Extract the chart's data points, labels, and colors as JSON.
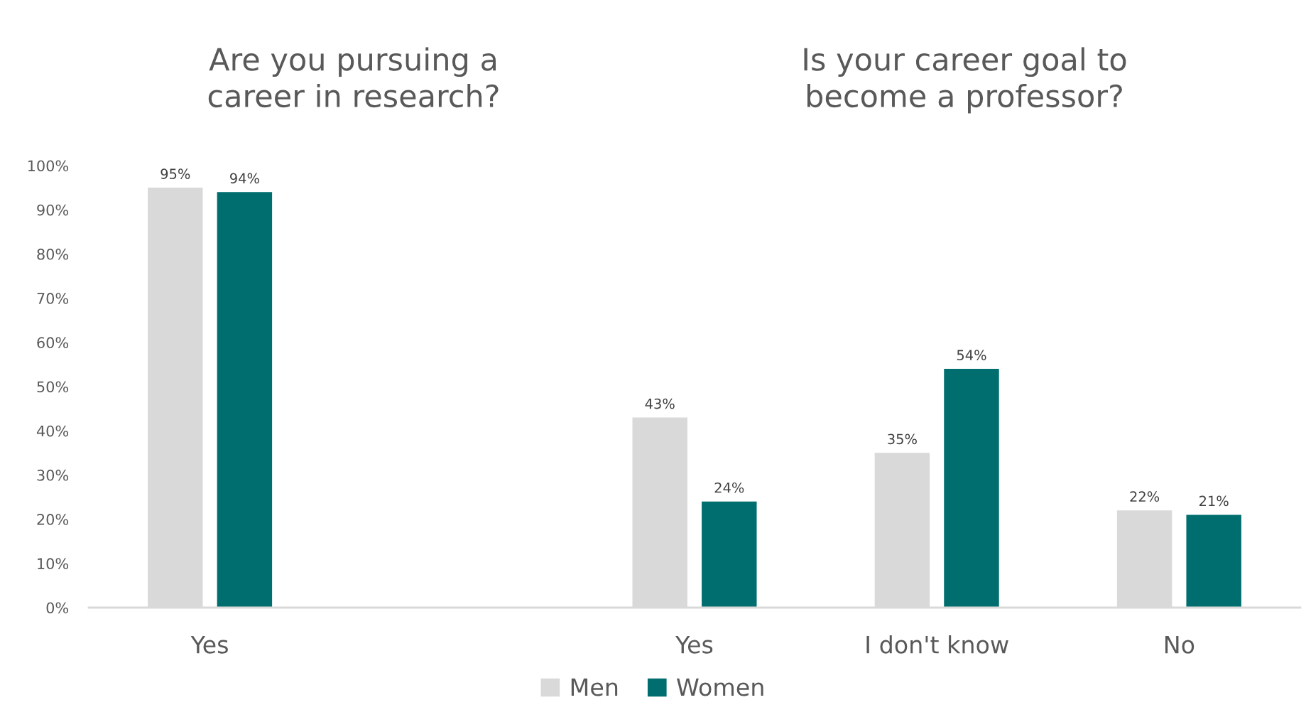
{
  "chart_data": {
    "type": "bar",
    "categories": [
      "Yes",
      null,
      "Yes",
      "I don't know",
      "No"
    ],
    "series": [
      {
        "name": "Men",
        "color": "#d9d9d9",
        "values": [
          95,
          null,
          43,
          35,
          22
        ],
        "value_labels": [
          "95%",
          null,
          "43%",
          "35%",
          "22%"
        ]
      },
      {
        "name": "Women",
        "color": "#006e6e",
        "values": [
          94,
          null,
          24,
          54,
          21
        ],
        "value_labels": [
          "94%",
          null,
          "24%",
          "54%",
          "21%"
        ]
      }
    ],
    "ylim": [
      0,
      100
    ],
    "yticks": [
      {
        "value": 0,
        "label": "0%"
      },
      {
        "value": 10,
        "label": "10%"
      },
      {
        "value": 20,
        "label": "20%"
      },
      {
        "value": 30,
        "label": "30%"
      },
      {
        "value": 40,
        "label": "40%"
      },
      {
        "value": 50,
        "label": "50%"
      },
      {
        "value": 60,
        "label": "60%"
      },
      {
        "value": 70,
        "label": "70%"
      },
      {
        "value": 80,
        "label": "80%"
      },
      {
        "value": 90,
        "label": "90%"
      },
      {
        "value": 100,
        "label": "100%"
      }
    ],
    "legend": "bottom",
    "annotations": [
      "Are you pursuing a\ncareer in research?",
      "Is your career goal to\nbecome a professor?"
    ]
  }
}
